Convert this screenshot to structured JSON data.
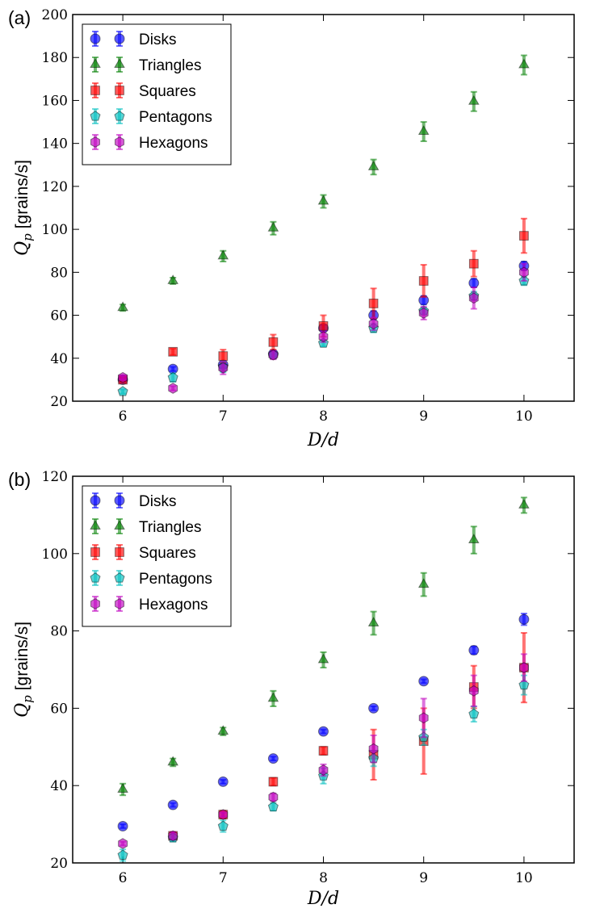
{
  "chart_data": [
    {
      "type": "scatter",
      "panel_label": "(a)",
      "xlabel": "D/d",
      "ylabel": {
        "symbol": "Q",
        "subscript": "p",
        "unit": "[grains/s]"
      },
      "xlim": [
        5.5,
        10.5
      ],
      "ylim": [
        20,
        200
      ],
      "xticks": [
        6,
        7,
        8,
        9,
        10
      ],
      "yticks": [
        20,
        40,
        60,
        80,
        100,
        120,
        140,
        160,
        180,
        200
      ],
      "legend_position": "upper-left",
      "x": [
        6,
        6.5,
        7,
        7.5,
        8,
        8.5,
        9,
        9.5,
        10
      ],
      "series": [
        {
          "name": "Disks",
          "marker": "circle",
          "color": "#0000ff",
          "y": [
            30,
            35,
            37,
            42,
            54,
            60,
            67,
            75,
            83
          ],
          "err": [
            1,
            1,
            1.5,
            1.5,
            1.5,
            2,
            2,
            2,
            2
          ]
        },
        {
          "name": "Triangles",
          "marker": "triangle",
          "color": "#008000",
          "y": [
            63.5,
            76,
            87.5,
            100.5,
            113,
            129,
            145.5,
            159.5,
            176.5
          ],
          "err": [
            1.5,
            1.5,
            2.5,
            3,
            3,
            3.5,
            4.5,
            4.5,
            4.5
          ]
        },
        {
          "name": "Squares",
          "marker": "square",
          "color": "#ff0000",
          "y": [
            30,
            43,
            41,
            47.5,
            55,
            65.5,
            76,
            84,
            97
          ],
          "err": [
            1,
            1.5,
            3,
            3.5,
            5,
            7,
            7.5,
            6,
            8
          ]
        },
        {
          "name": "Pentagons",
          "marker": "pentagon",
          "color": "#00bfbf",
          "y": [
            24.5,
            31,
            36,
            41.5,
            47,
            54,
            62,
            69,
            76
          ],
          "err": [
            1,
            2,
            2.5,
            1.5,
            1.5,
            2,
            1.5,
            2,
            2
          ]
        },
        {
          "name": "Hexagons",
          "marker": "hexagon",
          "color": "#bf00bf",
          "y": [
            31,
            26,
            35.5,
            41.5,
            50,
            56,
            61,
            68,
            80
          ],
          "err": [
            1,
            1,
            3,
            2,
            2.5,
            3,
            3,
            5,
            4
          ]
        }
      ]
    },
    {
      "type": "scatter",
      "panel_label": "(b)",
      "xlabel": "D/d",
      "ylabel": {
        "symbol": "Q",
        "subscript": "p",
        "unit": "[grains/s]"
      },
      "xlim": [
        5.5,
        10.5
      ],
      "ylim": [
        20,
        120
      ],
      "xticks": [
        6,
        7,
        8,
        9,
        10
      ],
      "yticks": [
        20,
        40,
        60,
        80,
        100,
        120
      ],
      "legend_position": "upper-left",
      "x": [
        6,
        6.5,
        7,
        7.5,
        8,
        8.5,
        9,
        9.5,
        10
      ],
      "series": [
        {
          "name": "Disks",
          "marker": "circle",
          "color": "#0000ff",
          "y": [
            29.5,
            35,
            41,
            47,
            54,
            60,
            67,
            75,
            83
          ],
          "err": [
            0.5,
            0.5,
            0.5,
            0.5,
            0.5,
            0.5,
            0.5,
            1,
            1.5
          ]
        },
        {
          "name": "Triangles",
          "marker": "triangle",
          "color": "#008000",
          "y": [
            39,
            46,
            54,
            62.5,
            72.5,
            82,
            92,
            103.5,
            112.5
          ],
          "err": [
            1.5,
            1,
            1,
            2,
            2,
            3,
            3,
            3.5,
            2
          ]
        },
        {
          "name": "Squares",
          "marker": "square",
          "color": "#ff0000",
          "y": [
            null,
            27,
            32.5,
            41,
            49,
            48,
            51.5,
            65.5,
            70.5
          ],
          "err": [
            0,
            1,
            1,
            1,
            1,
            6.5,
            8.5,
            5.5,
            9
          ]
        },
        {
          "name": "Pentagons",
          "marker": "pentagon",
          "color": "#00bfbf",
          "y": [
            22,
            26.5,
            29.5,
            34.5,
            42.5,
            47,
            52.5,
            58.5,
            66
          ],
          "err": [
            1.5,
            1,
            1.5,
            1,
            2,
            2,
            2,
            2,
            2.5
          ]
        },
        {
          "name": "Hexagons",
          "marker": "hexagon",
          "color": "#bf00bf",
          "y": [
            25,
            27,
            32.5,
            37,
            44,
            49.5,
            57.5,
            64.5,
            70.5
          ],
          "err": [
            0.5,
            1,
            0.5,
            1,
            1.5,
            3.5,
            5,
            4,
            3.5
          ]
        }
      ]
    }
  ]
}
